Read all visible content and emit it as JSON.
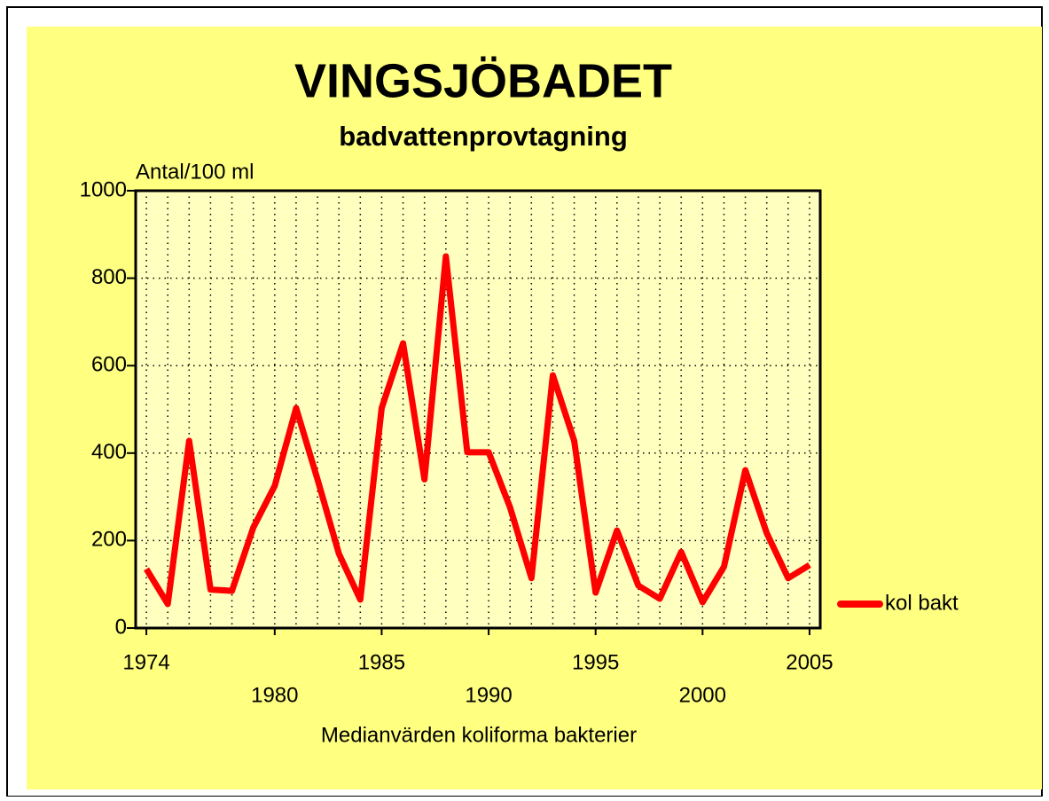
{
  "chart_data": {
    "type": "line",
    "title": "VINGSJÖBADET",
    "subtitle": "badvattenprovtagning",
    "y_label": "Antal/100 ml",
    "x_label": "Medianvärden koliforma bakterier",
    "x": [
      1974,
      1975,
      1976,
      1977,
      1978,
      1979,
      1980,
      1981,
      1982,
      1983,
      1984,
      1985,
      1986,
      1987,
      1988,
      1989,
      1990,
      1991,
      1992,
      1993,
      1994,
      1995,
      1996,
      1997,
      1998,
      1999,
      2000,
      2001,
      2002,
      2003,
      2004,
      2005
    ],
    "series": [
      {
        "name": "kol bakt",
        "color": "#ff0000",
        "values": [
          135,
          55,
          428,
          88,
          85,
          230,
          325,
          503,
          340,
          170,
          65,
          503,
          651,
          340,
          850,
          402,
          402,
          276,
          114,
          578,
          428,
          81,
          223,
          97,
          67,
          174,
          59,
          140,
          361,
          217,
          114,
          144
        ]
      }
    ],
    "xlim": [
      1973.5,
      2005.5
    ],
    "xticks": [
      1974,
      1980,
      1985,
      1990,
      1995,
      2000,
      2005
    ],
    "ylim": [
      0,
      1000
    ],
    "yticks": [
      0,
      200,
      400,
      600,
      800,
      1000
    ],
    "grid": true,
    "legend": "right"
  }
}
